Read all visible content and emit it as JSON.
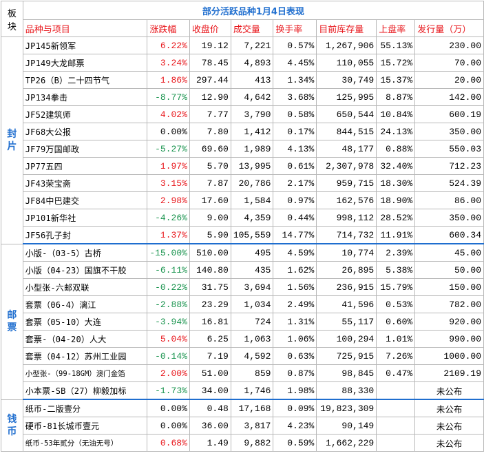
{
  "title": "部分活跃品种1月4日表现",
  "corner_label": "板块",
  "headers": [
    "品种与项目",
    "涨跌幅",
    "收盘价",
    "成交量",
    "换手率",
    "目前库存量",
    "上盘率",
    "发行量（万）"
  ],
  "sections": [
    {
      "label": "封片",
      "rows": [
        {
          "name": "JP145新领军",
          "change": "6.22%",
          "dir": "up",
          "close": "19.12",
          "volume": "7,221",
          "turnover": "0.57%",
          "stock": "1,267,906",
          "rate": "55.13%",
          "issue": "230.00"
        },
        {
          "name": "JP149大龙邮票",
          "change": "3.24%",
          "dir": "up",
          "close": "78.45",
          "volume": "4,893",
          "turnover": "4.45%",
          "stock": "110,055",
          "rate": "15.72%",
          "issue": "70.00"
        },
        {
          "name": "TP26（B）二十四节气",
          "change": "1.86%",
          "dir": "up",
          "close": "297.44",
          "volume": "413",
          "turnover": "1.34%",
          "stock": "30,749",
          "rate": "15.37%",
          "issue": "20.00"
        },
        {
          "name": "JP134拳击",
          "change": "-8.77%",
          "dir": "down",
          "close": "12.90",
          "volume": "4,642",
          "turnover": "3.68%",
          "stock": "125,995",
          "rate": "8.87%",
          "issue": "142.00"
        },
        {
          "name": "JF52建筑师",
          "change": "4.02%",
          "dir": "up",
          "close": "7.77",
          "volume": "3,790",
          "turnover": "0.58%",
          "stock": "650,544",
          "rate": "10.84%",
          "issue": "600.19"
        },
        {
          "name": "JF68大公报",
          "change": "0.00%",
          "dir": "flat",
          "close": "7.80",
          "volume": "1,412",
          "turnover": "0.17%",
          "stock": "844,515",
          "rate": "24.13%",
          "issue": "350.00"
        },
        {
          "name": "JF79万国邮政",
          "change": "-5.27%",
          "dir": "down",
          "close": "69.60",
          "volume": "1,989",
          "turnover": "4.13%",
          "stock": "48,177",
          "rate": "0.88%",
          "issue": "550.03"
        },
        {
          "name": "JP77五四",
          "change": "1.97%",
          "dir": "up",
          "close": "5.70",
          "volume": "13,995",
          "turnover": "0.61%",
          "stock": "2,307,978",
          "rate": "32.40%",
          "issue": "712.23"
        },
        {
          "name": "JF43荣宝斋",
          "change": "3.15%",
          "dir": "up",
          "close": "7.87",
          "volume": "20,786",
          "turnover": "2.17%",
          "stock": "959,715",
          "rate": "18.30%",
          "issue": "524.39"
        },
        {
          "name": "JF84中巴建交",
          "change": "2.98%",
          "dir": "up",
          "close": "17.60",
          "volume": "1,584",
          "turnover": "0.97%",
          "stock": "162,576",
          "rate": "18.90%",
          "issue": "86.00"
        },
        {
          "name": "JP101新华社",
          "change": "-4.26%",
          "dir": "down",
          "close": "9.00",
          "volume": "4,359",
          "turnover": "0.44%",
          "stock": "998,112",
          "rate": "28.52%",
          "issue": "350.00"
        },
        {
          "name": "JF56孔子封",
          "change": "1.37%",
          "dir": "up",
          "close": "5.90",
          "volume": "105,559",
          "turnover": "14.77%",
          "stock": "714,732",
          "rate": "11.91%",
          "issue": "600.34"
        }
      ]
    },
    {
      "label": "邮票",
      "rows": [
        {
          "name": "小版-（03-5）古桥",
          "change": "-15.00%",
          "dir": "down",
          "close": "510.00",
          "volume": "495",
          "turnover": "4.59%",
          "stock": "10,774",
          "rate": "2.39%",
          "issue": "45.00"
        },
        {
          "name": "小版（04-23）国旗不干胶",
          "change": "-6.11%",
          "dir": "down",
          "close": "140.80",
          "volume": "435",
          "turnover": "1.62%",
          "stock": "26,895",
          "rate": "5.38%",
          "issue": "50.00"
        },
        {
          "name": "小型张-六邮双联",
          "change": "-0.22%",
          "dir": "down",
          "close": "31.75",
          "volume": "3,694",
          "turnover": "1.56%",
          "stock": "236,915",
          "rate": "15.79%",
          "issue": "150.00"
        },
        {
          "name": "套票（06-4）漓江",
          "change": "-2.88%",
          "dir": "down",
          "close": "23.29",
          "volume": "1,034",
          "turnover": "2.49%",
          "stock": "41,596",
          "rate": "0.53%",
          "issue": "782.00"
        },
        {
          "name": "套票（05-10）大连",
          "change": "-3.94%",
          "dir": "down",
          "close": "16.81",
          "volume": "724",
          "turnover": "1.31%",
          "stock": "55,117",
          "rate": "0.60%",
          "issue": "920.00"
        },
        {
          "name": "套票-（04-20）人大",
          "change": "5.04%",
          "dir": "up",
          "close": "6.25",
          "volume": "1,063",
          "turnover": "1.06%",
          "stock": "100,294",
          "rate": "1.01%",
          "issue": "990.00"
        },
        {
          "name": "套票（04-12）苏州工业园",
          "change": "-0.14%",
          "dir": "down",
          "close": "7.19",
          "volume": "4,592",
          "turnover": "0.63%",
          "stock": "725,915",
          "rate": "7.26%",
          "issue": "1000.00"
        },
        {
          "name": "小型张-（99-18GM）澳门金箔",
          "change": "2.00%",
          "dir": "up",
          "close": "51.00",
          "volume": "859",
          "turnover": "0.87%",
          "stock": "98,845",
          "rate": "0.47%",
          "issue": "2109.19",
          "small": true
        },
        {
          "name": "小本票-SB（27）柳毅加标",
          "change": "-1.73%",
          "dir": "down",
          "close": "34.00",
          "volume": "1,746",
          "turnover": "1.98%",
          "stock": "88,330",
          "rate": "",
          "issue": "未公布",
          "center_issue": true
        }
      ]
    },
    {
      "label": "钱币",
      "rows": [
        {
          "name": "纸币-二版壹分",
          "change": "0.00%",
          "dir": "flat",
          "close": "0.48",
          "volume": "17,168",
          "turnover": "0.09%",
          "stock": "19,823,309",
          "rate": "",
          "issue": "未公布",
          "center_issue": true
        },
        {
          "name": "硬币-81长城币壹元",
          "change": "0.00%",
          "dir": "flat",
          "close": "36.00",
          "volume": "3,817",
          "turnover": "4.23%",
          "stock": "90,149",
          "rate": "",
          "issue": "未公布",
          "center_issue": true
        },
        {
          "name": "纸币-53年贰分（无油无号）",
          "change": "0.68%",
          "dir": "up",
          "close": "1.49",
          "volume": "9,882",
          "turnover": "0.59%",
          "stock": "1,662,229",
          "rate": "",
          "issue": "未公布",
          "center_issue": true,
          "small": true
        }
      ]
    }
  ]
}
